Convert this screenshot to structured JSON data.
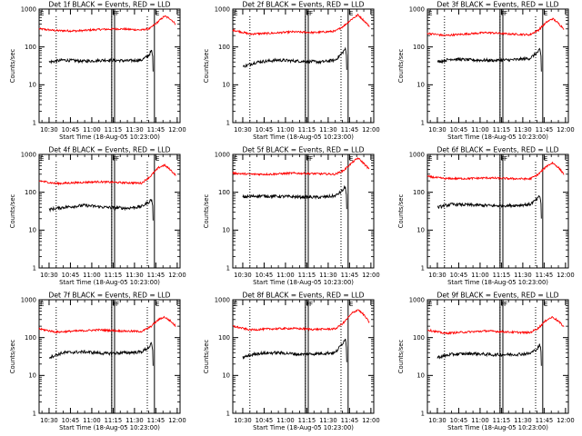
{
  "colors": {
    "events": "#000000",
    "lld": "#ff0000",
    "background": "#ffffff"
  },
  "chart_data": {
    "type": "line",
    "scale": "log",
    "ylabel": "Counts/sec",
    "xlabel": "Start Time (18-Aug-05 10:23:00)",
    "x_tick_labels": [
      "10:30",
      "10:45",
      "11:00",
      "11:15",
      "11:30",
      "11:45",
      "12:00"
    ],
    "y_tick_labels": [
      "1",
      "10",
      "100",
      "1000"
    ],
    "ylim": [
      1,
      1000
    ],
    "xlim": [
      "10:23",
      "12:02"
    ],
    "markers": [
      {
        "label": "E",
        "time": "10:23"
      },
      {
        "label": "F",
        "time": "11:14"
      },
      {
        "label": "F",
        "time": "11:16"
      },
      {
        "label": "E",
        "time": "11:44"
      }
    ],
    "dotted_lines": [
      "10:35",
      "11:14",
      "11:39"
    ],
    "panels": [
      {
        "title": "Det 1f BLACK = Events, RED = LLD",
        "series": [
          {
            "color": "red",
            "x": [
              "10:23",
              "10:35",
              "10:50",
              "11:05",
              "11:20",
              "11:35",
              "11:41",
              "11:47",
              "11:51",
              "11:55",
              "11:59"
            ],
            "y": [
              300,
              270,
              265,
              290,
              300,
              280,
              310,
              480,
              650,
              560,
              400
            ]
          },
          {
            "color": "black",
            "x": [
              "10:30",
              "10:40",
              "10:55",
              "11:10",
              "11:25",
              "11:35",
              "11:40",
              "11:42",
              "11:43"
            ],
            "y": [
              40,
              45,
              42,
              45,
              43,
              45,
              60,
              80,
              50
            ]
          }
        ]
      },
      {
        "title": "Det 2f BLACK = Events, RED = LLD",
        "series": [
          {
            "color": "red",
            "x": [
              "10:23",
              "10:35",
              "10:50",
              "11:05",
              "11:20",
              "11:35",
              "11:41",
              "11:47",
              "11:51",
              "11:55",
              "11:59"
            ],
            "y": [
              280,
              220,
              230,
              250,
              240,
              260,
              360,
              560,
              700,
              500,
              350
            ]
          },
          {
            "color": "black",
            "x": [
              "10:30",
              "10:40",
              "10:55",
              "11:10",
              "11:25",
              "11:35",
              "11:40",
              "11:42",
              "11:43"
            ],
            "y": [
              30,
              40,
              45,
              42,
              40,
              45,
              70,
              90,
              55
            ]
          }
        ]
      },
      {
        "title": "Det 3f BLACK = Events, RED = LLD",
        "series": [
          {
            "color": "red",
            "x": [
              "10:23",
              "10:35",
              "10:50",
              "11:05",
              "11:20",
              "11:35",
              "11:41",
              "11:47",
              "11:51",
              "11:55",
              "11:59"
            ],
            "y": [
              230,
              200,
              220,
              240,
              220,
              210,
              280,
              460,
              560,
              420,
              300
            ]
          },
          {
            "color": "black",
            "x": [
              "10:30",
              "10:40",
              "10:55",
              "11:10",
              "11:25",
              "11:35",
              "11:40",
              "11:42",
              "11:43"
            ],
            "y": [
              40,
              48,
              45,
              44,
              46,
              50,
              70,
              85,
              50
            ]
          }
        ]
      },
      {
        "title": "Det 4f BLACK = Events, RED = LLD",
        "series": [
          {
            "color": "red",
            "x": [
              "10:23",
              "10:35",
              "10:50",
              "11:05",
              "11:20",
              "11:35",
              "11:41",
              "11:47",
              "11:51",
              "11:55",
              "11:59"
            ],
            "y": [
              200,
              170,
              180,
              190,
              180,
              175,
              260,
              450,
              520,
              400,
              280
            ]
          },
          {
            "color": "black",
            "x": [
              "10:30",
              "10:40",
              "10:55",
              "11:10",
              "11:25",
              "11:35",
              "11:40",
              "11:42",
              "11:43"
            ],
            "y": [
              35,
              40,
              45,
              40,
              38,
              42,
              55,
              65,
              40
            ]
          }
        ]
      },
      {
        "title": "Det 5f BLACK = Events, RED = LLD",
        "series": [
          {
            "color": "red",
            "x": [
              "10:23",
              "10:35",
              "10:50",
              "11:05",
              "11:20",
              "11:35",
              "11:41",
              "11:47",
              "11:51",
              "11:55",
              "11:59"
            ],
            "y": [
              320,
              300,
              300,
              320,
              310,
              300,
              380,
              620,
              800,
              580,
              400
            ]
          },
          {
            "color": "black",
            "x": [
              "10:30",
              "10:40",
              "10:55",
              "11:10",
              "11:25",
              "11:35",
              "11:40",
              "11:42",
              "11:43"
            ],
            "y": [
              75,
              80,
              78,
              75,
              74,
              80,
              110,
              140,
              80
            ]
          }
        ]
      },
      {
        "title": "Det 6f BLACK = Events, RED = LLD",
        "series": [
          {
            "color": "red",
            "x": [
              "10:23",
              "10:35",
              "10:50",
              "11:05",
              "11:20",
              "11:35",
              "11:41",
              "11:47",
              "11:51",
              "11:55",
              "11:59"
            ],
            "y": [
              260,
              230,
              230,
              240,
              230,
              225,
              300,
              500,
              600,
              450,
              300
            ]
          },
          {
            "color": "black",
            "x": [
              "10:30",
              "10:40",
              "10:55",
              "11:10",
              "11:25",
              "11:35",
              "11:40",
              "11:42",
              "11:43"
            ],
            "y": [
              40,
              48,
              46,
              44,
              45,
              48,
              65,
              80,
              45
            ]
          }
        ]
      },
      {
        "title": "Det 7f BLACK = Events, RED = LLD",
        "series": [
          {
            "color": "red",
            "x": [
              "10:23",
              "10:35",
              "10:50",
              "11:05",
              "11:20",
              "11:35",
              "11:41",
              "11:47",
              "11:51",
              "11:55",
              "11:59"
            ],
            "y": [
              170,
              140,
              150,
              160,
              150,
              145,
              190,
              300,
              350,
              280,
              200
            ]
          },
          {
            "color": "black",
            "x": [
              "10:30",
              "10:40",
              "10:55",
              "11:10",
              "11:25",
              "11:35",
              "11:40",
              "11:42",
              "11:43"
            ],
            "y": [
              30,
              40,
              42,
              38,
              40,
              42,
              55,
              70,
              40
            ]
          }
        ]
      },
      {
        "title": "Det 8f BLACK = Events, RED = LLD",
        "series": [
          {
            "color": "red",
            "x": [
              "10:23",
              "10:35",
              "10:50",
              "11:05",
              "11:20",
              "11:35",
              "11:41",
              "11:47",
              "11:51",
              "11:55",
              "11:59"
            ],
            "y": [
              200,
              160,
              170,
              175,
              165,
              170,
              250,
              450,
              550,
              400,
              250
            ]
          },
          {
            "color": "black",
            "x": [
              "10:30",
              "10:40",
              "10:55",
              "11:10",
              "11:25",
              "11:35",
              "11:40",
              "11:42",
              "11:43"
            ],
            "y": [
              30,
              38,
              40,
              36,
              38,
              40,
              70,
              95,
              50
            ]
          }
        ]
      },
      {
        "title": "Det 9f BLACK = Events, RED = LLD",
        "series": [
          {
            "color": "red",
            "x": [
              "10:23",
              "10:35",
              "10:50",
              "11:05",
              "11:20",
              "11:35",
              "11:41",
              "11:47",
              "11:51",
              "11:55",
              "11:59"
            ],
            "y": [
              160,
              130,
              140,
              150,
              140,
              135,
              180,
              300,
              350,
              270,
              190
            ]
          },
          {
            "color": "black",
            "x": [
              "10:30",
              "10:40",
              "10:55",
              "11:10",
              "11:25",
              "11:35",
              "11:40",
              "11:42",
              "11:43"
            ],
            "y": [
              30,
              36,
              38,
              35,
              36,
              38,
              50,
              65,
              40
            ]
          }
        ]
      }
    ]
  }
}
